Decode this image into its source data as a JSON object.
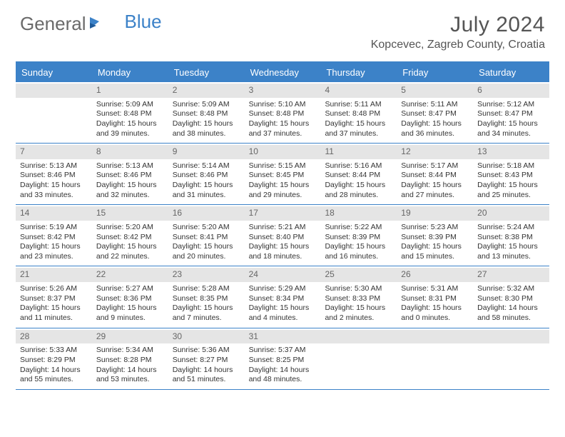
{
  "brand": {
    "word1": "General",
    "word2": "Blue"
  },
  "title": "July 2024",
  "location": "Kopcevec, Zagreb County, Croatia",
  "colors": {
    "accent": "#3c82c8",
    "header_bg": "#3c82c8",
    "daynum_bg": "#e5e5e5",
    "text": "#333333",
    "muted": "#6a6a6a"
  },
  "day_headers": [
    "Sunday",
    "Monday",
    "Tuesday",
    "Wednesday",
    "Thursday",
    "Friday",
    "Saturday"
  ],
  "weeks": [
    [
      {
        "num": "",
        "sunrise": "",
        "sunset": "",
        "daylight1": "",
        "daylight2": ""
      },
      {
        "num": "1",
        "sunrise": "Sunrise: 5:09 AM",
        "sunset": "Sunset: 8:48 PM",
        "daylight1": "Daylight: 15 hours",
        "daylight2": "and 39 minutes."
      },
      {
        "num": "2",
        "sunrise": "Sunrise: 5:09 AM",
        "sunset": "Sunset: 8:48 PM",
        "daylight1": "Daylight: 15 hours",
        "daylight2": "and 38 minutes."
      },
      {
        "num": "3",
        "sunrise": "Sunrise: 5:10 AM",
        "sunset": "Sunset: 8:48 PM",
        "daylight1": "Daylight: 15 hours",
        "daylight2": "and 37 minutes."
      },
      {
        "num": "4",
        "sunrise": "Sunrise: 5:11 AM",
        "sunset": "Sunset: 8:48 PM",
        "daylight1": "Daylight: 15 hours",
        "daylight2": "and 37 minutes."
      },
      {
        "num": "5",
        "sunrise": "Sunrise: 5:11 AM",
        "sunset": "Sunset: 8:47 PM",
        "daylight1": "Daylight: 15 hours",
        "daylight2": "and 36 minutes."
      },
      {
        "num": "6",
        "sunrise": "Sunrise: 5:12 AM",
        "sunset": "Sunset: 8:47 PM",
        "daylight1": "Daylight: 15 hours",
        "daylight2": "and 34 minutes."
      }
    ],
    [
      {
        "num": "7",
        "sunrise": "Sunrise: 5:13 AM",
        "sunset": "Sunset: 8:46 PM",
        "daylight1": "Daylight: 15 hours",
        "daylight2": "and 33 minutes."
      },
      {
        "num": "8",
        "sunrise": "Sunrise: 5:13 AM",
        "sunset": "Sunset: 8:46 PM",
        "daylight1": "Daylight: 15 hours",
        "daylight2": "and 32 minutes."
      },
      {
        "num": "9",
        "sunrise": "Sunrise: 5:14 AM",
        "sunset": "Sunset: 8:46 PM",
        "daylight1": "Daylight: 15 hours",
        "daylight2": "and 31 minutes."
      },
      {
        "num": "10",
        "sunrise": "Sunrise: 5:15 AM",
        "sunset": "Sunset: 8:45 PM",
        "daylight1": "Daylight: 15 hours",
        "daylight2": "and 29 minutes."
      },
      {
        "num": "11",
        "sunrise": "Sunrise: 5:16 AM",
        "sunset": "Sunset: 8:44 PM",
        "daylight1": "Daylight: 15 hours",
        "daylight2": "and 28 minutes."
      },
      {
        "num": "12",
        "sunrise": "Sunrise: 5:17 AM",
        "sunset": "Sunset: 8:44 PM",
        "daylight1": "Daylight: 15 hours",
        "daylight2": "and 27 minutes."
      },
      {
        "num": "13",
        "sunrise": "Sunrise: 5:18 AM",
        "sunset": "Sunset: 8:43 PM",
        "daylight1": "Daylight: 15 hours",
        "daylight2": "and 25 minutes."
      }
    ],
    [
      {
        "num": "14",
        "sunrise": "Sunrise: 5:19 AM",
        "sunset": "Sunset: 8:42 PM",
        "daylight1": "Daylight: 15 hours",
        "daylight2": "and 23 minutes."
      },
      {
        "num": "15",
        "sunrise": "Sunrise: 5:20 AM",
        "sunset": "Sunset: 8:42 PM",
        "daylight1": "Daylight: 15 hours",
        "daylight2": "and 22 minutes."
      },
      {
        "num": "16",
        "sunrise": "Sunrise: 5:20 AM",
        "sunset": "Sunset: 8:41 PM",
        "daylight1": "Daylight: 15 hours",
        "daylight2": "and 20 minutes."
      },
      {
        "num": "17",
        "sunrise": "Sunrise: 5:21 AM",
        "sunset": "Sunset: 8:40 PM",
        "daylight1": "Daylight: 15 hours",
        "daylight2": "and 18 minutes."
      },
      {
        "num": "18",
        "sunrise": "Sunrise: 5:22 AM",
        "sunset": "Sunset: 8:39 PM",
        "daylight1": "Daylight: 15 hours",
        "daylight2": "and 16 minutes."
      },
      {
        "num": "19",
        "sunrise": "Sunrise: 5:23 AM",
        "sunset": "Sunset: 8:39 PM",
        "daylight1": "Daylight: 15 hours",
        "daylight2": "and 15 minutes."
      },
      {
        "num": "20",
        "sunrise": "Sunrise: 5:24 AM",
        "sunset": "Sunset: 8:38 PM",
        "daylight1": "Daylight: 15 hours",
        "daylight2": "and 13 minutes."
      }
    ],
    [
      {
        "num": "21",
        "sunrise": "Sunrise: 5:26 AM",
        "sunset": "Sunset: 8:37 PM",
        "daylight1": "Daylight: 15 hours",
        "daylight2": "and 11 minutes."
      },
      {
        "num": "22",
        "sunrise": "Sunrise: 5:27 AM",
        "sunset": "Sunset: 8:36 PM",
        "daylight1": "Daylight: 15 hours",
        "daylight2": "and 9 minutes."
      },
      {
        "num": "23",
        "sunrise": "Sunrise: 5:28 AM",
        "sunset": "Sunset: 8:35 PM",
        "daylight1": "Daylight: 15 hours",
        "daylight2": "and 7 minutes."
      },
      {
        "num": "24",
        "sunrise": "Sunrise: 5:29 AM",
        "sunset": "Sunset: 8:34 PM",
        "daylight1": "Daylight: 15 hours",
        "daylight2": "and 4 minutes."
      },
      {
        "num": "25",
        "sunrise": "Sunrise: 5:30 AM",
        "sunset": "Sunset: 8:33 PM",
        "daylight1": "Daylight: 15 hours",
        "daylight2": "and 2 minutes."
      },
      {
        "num": "26",
        "sunrise": "Sunrise: 5:31 AM",
        "sunset": "Sunset: 8:31 PM",
        "daylight1": "Daylight: 15 hours",
        "daylight2": "and 0 minutes."
      },
      {
        "num": "27",
        "sunrise": "Sunrise: 5:32 AM",
        "sunset": "Sunset: 8:30 PM",
        "daylight1": "Daylight: 14 hours",
        "daylight2": "and 58 minutes."
      }
    ],
    [
      {
        "num": "28",
        "sunrise": "Sunrise: 5:33 AM",
        "sunset": "Sunset: 8:29 PM",
        "daylight1": "Daylight: 14 hours",
        "daylight2": "and 55 minutes."
      },
      {
        "num": "29",
        "sunrise": "Sunrise: 5:34 AM",
        "sunset": "Sunset: 8:28 PM",
        "daylight1": "Daylight: 14 hours",
        "daylight2": "and 53 minutes."
      },
      {
        "num": "30",
        "sunrise": "Sunrise: 5:36 AM",
        "sunset": "Sunset: 8:27 PM",
        "daylight1": "Daylight: 14 hours",
        "daylight2": "and 51 minutes."
      },
      {
        "num": "31",
        "sunrise": "Sunrise: 5:37 AM",
        "sunset": "Sunset: 8:25 PM",
        "daylight1": "Daylight: 14 hours",
        "daylight2": "and 48 minutes."
      },
      {
        "num": "",
        "sunrise": "",
        "sunset": "",
        "daylight1": "",
        "daylight2": ""
      },
      {
        "num": "",
        "sunrise": "",
        "sunset": "",
        "daylight1": "",
        "daylight2": ""
      },
      {
        "num": "",
        "sunrise": "",
        "sunset": "",
        "daylight1": "",
        "daylight2": ""
      }
    ]
  ]
}
